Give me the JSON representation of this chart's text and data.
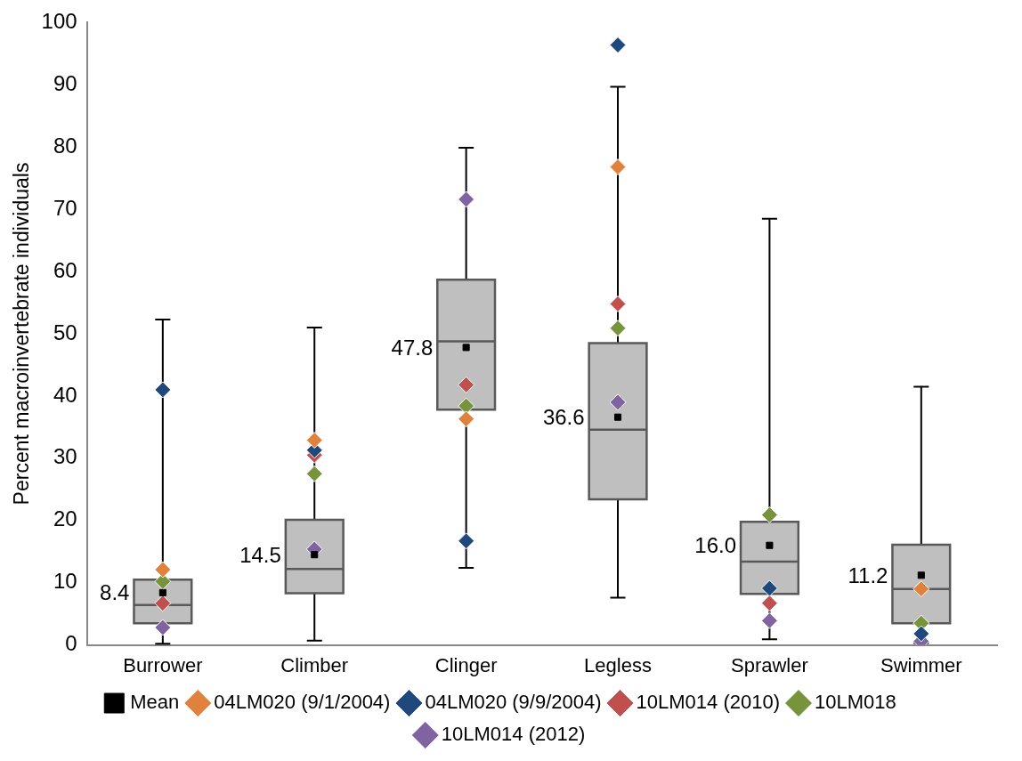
{
  "chart_data": {
    "type": "box",
    "ylabel": "Percent macroinvertebrate individuals",
    "categories": [
      "Burrower",
      "Climber",
      "Clinger",
      "Legless",
      "Sprawler",
      "Swimmer"
    ],
    "ylim": [
      0,
      100
    ],
    "yticks": [
      0,
      10,
      20,
      30,
      40,
      50,
      60,
      70,
      80,
      90,
      100
    ],
    "grid": false,
    "legend": "bottom",
    "marker": "diamond",
    "boxes": [
      {
        "low": 0.2,
        "q1": 3.5,
        "median": 6.4,
        "q3": 10.5,
        "high": 52.3
      },
      {
        "low": 0.7,
        "q1": 8.3,
        "median": 12.2,
        "q3": 20.1,
        "high": 51
      },
      {
        "low": 12.4,
        "q1": 37.8,
        "median": 48.8,
        "q3": 58.7,
        "high": 79.9
      },
      {
        "low": 7.6,
        "q1": 23.4,
        "median": 34.6,
        "q3": 48.5,
        "high": 89.7
      },
      {
        "low": 0.9,
        "q1": 8.2,
        "median": 13.4,
        "q3": 19.8,
        "high": 68.5
      },
      {
        "low": 0.3,
        "q1": 3.5,
        "median": 9.0,
        "q3": 16.1,
        "high": 41.5
      }
    ],
    "series": [
      {
        "name": "Mean",
        "type": "scatter",
        "marker": "square",
        "color": "#000000",
        "values": [
          8.4,
          14.5,
          47.8,
          36.6,
          16.0,
          11.2
        ],
        "value_labels": [
          "8.4",
          "14.5",
          "47.8",
          "36.6",
          "16.0",
          "11.2"
        ]
      },
      {
        "name": "04LM020 (9/1/2004)",
        "type": "scatter",
        "color": "#e0823d",
        "values": [
          12.1,
          32.9,
          36.3,
          76.8,
          null,
          9.0
        ]
      },
      {
        "name": "04LM020 (9/9/2004)",
        "type": "scatter",
        "color": "#1f497d",
        "values": [
          41.0,
          31.3,
          16.7,
          96.4,
          9.1,
          1.8
        ]
      },
      {
        "name": "10LM014 (2010)",
        "type": "scatter",
        "color": "#c0504d",
        "values": [
          6.7,
          30.5,
          41.8,
          54.8,
          6.7,
          null
        ]
      },
      {
        "name": "10LM018",
        "type": "scatter",
        "color": "#77933c",
        "values": [
          10.2,
          27.5,
          38.4,
          50.9,
          20.9,
          3.5
        ]
      },
      {
        "name": "10LM014 (2012)",
        "type": "scatter",
        "color": "#8064a2",
        "values": [
          2.8,
          15.4,
          71.6,
          39.0,
          3.9,
          0.6
        ]
      }
    ]
  }
}
